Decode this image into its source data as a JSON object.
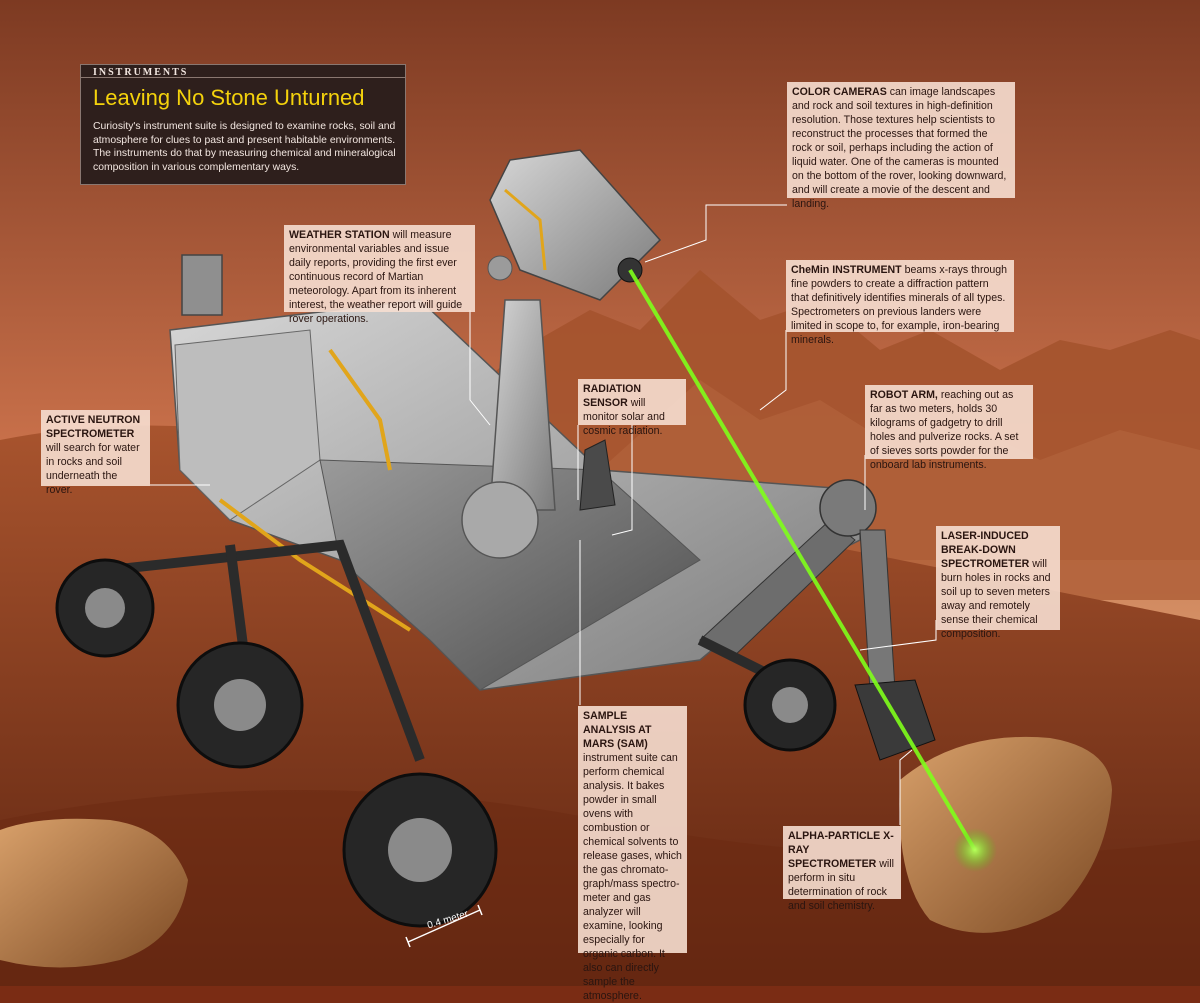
{
  "header": {
    "kicker": "INSTRUMENTS",
    "title": "Leaving No Stone Unturned",
    "dek": "Curiosity's instrument suite is designed to examine rocks, soil and atmosphere for clues to past and present habitable environments. The instruments do that by measuring chemical and mineralogical composition in various complementary ways."
  },
  "callouts": {
    "color_cameras": {
      "title": "COLOR CAMERAS",
      "text": " can image landscapes and rock and soil textures in high-definition resolution. Those textures help scientists to reconstruct the processes that formed the rock or soil, perhaps including the action of liquid water. One of the cameras is mounted on the bottom of the rover, looking downward, and will create a movie of the descent and landing."
    },
    "weather_station": {
      "title": "WEATHER STATION",
      "text": " will measure environmental variables and issue daily reports, providing the first ever continuous record of Martian meteorology. Apart from its inherent interest, the weather report will guide rover operations."
    },
    "chemin": {
      "title": "CheMin INSTRUMENT",
      "text": " beams x-rays through fine powders to create a diffraction pattern that definitively identifies minerals of all types. Spectrometers on previous landers were limited in scope to, for example, iron-bearing minerals."
    },
    "radiation_sensor": {
      "title": "RADIATION SENSOR",
      "text": " will monitor solar and cosmic radiation."
    },
    "robot_arm": {
      "title": "ROBOT ARM,",
      "text": " reaching out as far as two meters, holds 30 kilograms of gadgetry to drill holes and pulverize rocks. A set of sieves sorts powder for the onboard lab instruments."
    },
    "neutron": {
      "title": "ACTIVE NEUTRON SPECTROMETER",
      "text": " will search for water in rocks and soil underneath the rover."
    },
    "laser": {
      "title": "LASER-INDUCED BREAK-DOWN SPECTROMETER",
      "text": " will burn holes in rocks and soil up to seven meters away and remotely sense their chemical composition."
    },
    "sam": {
      "title": "SAMPLE ANALYSIS AT MARS (SAM)",
      "text": " instrument suite can perform chemical analysis. It bakes powder in small ovens with combustion or chemical solvents to release gases, which the gas chromato-graph/mass spectro-meter and gas analyzer will examine, looking especially for organic carbon. It also can directly sample the atmosphere."
    },
    "apxs": {
      "title": "ALPHA-PARTICLE X-RAY SPECTROMETER",
      "text": " will perform in situ determination of rock and soil chemistry."
    }
  },
  "scale": {
    "label": "0.4 meter"
  },
  "colors": {
    "accent": "#f4d20c",
    "laser": "#7fff1a",
    "panel": "#2e1f1c",
    "callout_bg": "#f6ded0"
  }
}
